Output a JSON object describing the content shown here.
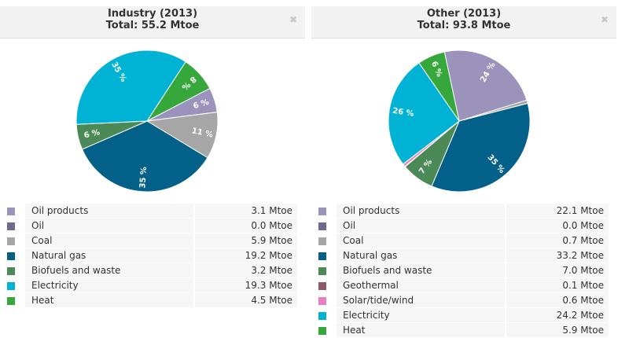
{
  "unit": "Mtoe",
  "chart_data": [
    {
      "type": "pie",
      "title": "Industry (2013)",
      "subtitle": "Total: 55.2 Mtoe",
      "slices": [
        {
          "name": "Oil products",
          "value": 3.1,
          "value_text": "3.1 Mtoe",
          "label": "6 %",
          "color": "#9b93bb"
        },
        {
          "name": "Oil",
          "value": 0.0,
          "value_text": "0.0 Mtoe",
          "label": "",
          "color": "#6e6a8e"
        },
        {
          "name": "Coal",
          "value": 5.9,
          "value_text": "5.9 Mtoe",
          "label": "11 %",
          "color": "#a6a6a6"
        },
        {
          "name": "Natural gas",
          "value": 19.2,
          "value_text": "19.2 Mtoe",
          "label": "35 %",
          "color": "#036088"
        },
        {
          "name": "Biofuels and waste",
          "value": 3.2,
          "value_text": "3.2 Mtoe",
          "label": "6 %",
          "color": "#4b8a57"
        },
        {
          "name": "Electricity",
          "value": 19.3,
          "value_text": "19.3 Mtoe",
          "label": "35 %",
          "color": "#00b3d4"
        },
        {
          "name": "Heat",
          "value": 4.5,
          "value_text": "4.5 Mtoe",
          "label": "8 %",
          "color": "#36a73b"
        }
      ]
    },
    {
      "type": "pie",
      "title": "Other (2013)",
      "subtitle": "Total: 93.8 Mtoe",
      "slices": [
        {
          "name": "Oil products",
          "value": 22.1,
          "value_text": "22.1 Mtoe",
          "label": "24 %",
          "color": "#9b93bb"
        },
        {
          "name": "Oil",
          "value": 0.0,
          "value_text": "0.0 Mtoe",
          "label": "",
          "color": "#6e6a8e"
        },
        {
          "name": "Coal",
          "value": 0.7,
          "value_text": "0.7 Mtoe",
          "label": "",
          "color": "#a6a6a6"
        },
        {
          "name": "Natural gas",
          "value": 33.2,
          "value_text": "33.2 Mtoe",
          "label": "35 %",
          "color": "#036088"
        },
        {
          "name": "Biofuels and waste",
          "value": 7.0,
          "value_text": "7.0 Mtoe",
          "label": "7 %",
          "color": "#4b8a57"
        },
        {
          "name": "Geothermal",
          "value": 0.1,
          "value_text": "0.1 Mtoe",
          "label": "",
          "color": "#8d5a6b"
        },
        {
          "name": "Solar/tide/wind",
          "value": 0.6,
          "value_text": "0.6 Mtoe",
          "label": "",
          "color": "#e87fc0"
        },
        {
          "name": "Electricity",
          "value": 24.2,
          "value_text": "24.2 Mtoe",
          "label": "26 %",
          "color": "#00b3d4"
        },
        {
          "name": "Heat",
          "value": 5.9,
          "value_text": "5.9 Mtoe",
          "label": "6 %",
          "color": "#36a73b"
        }
      ]
    }
  ],
  "close_symbol": "✖"
}
